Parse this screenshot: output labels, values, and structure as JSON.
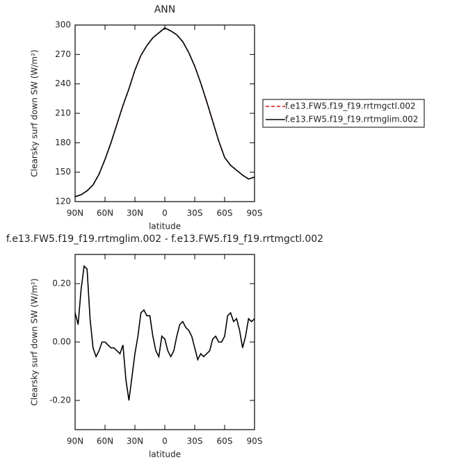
{
  "chart_data": [
    {
      "type": "line",
      "title": "ANN",
      "x_label": "latitude",
      "y_label": "Clearsky surf down SW (W/m²)",
      "x": [
        90,
        84,
        78,
        72,
        66,
        60,
        54,
        48,
        42,
        36,
        30,
        24,
        18,
        12,
        6,
        0,
        -6,
        -12,
        -18,
        -24,
        -30,
        -36,
        -42,
        -48,
        -54,
        -60,
        -66,
        -72,
        -78,
        -84,
        -90
      ],
      "series": [
        {
          "name": "f.e13.FW5.f19_f19.rrtmgctl.002",
          "color": "#dd1111",
          "linestyle": "dashed",
          "values": [
            125,
            127,
            131,
            137,
            148,
            163,
            180,
            199,
            218,
            235,
            254,
            269,
            279,
            287,
            292,
            297,
            294,
            290,
            283,
            272,
            258,
            241,
            222,
            202,
            182,
            165,
            157,
            152,
            147,
            143,
            145
          ]
        },
        {
          "name": "f.e13.FW5.f19_f19.rrtmglim.002",
          "color": "#000000",
          "linestyle": "solid",
          "values": [
            125,
            127,
            131,
            137,
            148,
            163,
            180,
            199,
            218,
            235,
            254,
            269,
            279,
            287,
            292,
            297,
            294,
            290,
            283,
            272,
            258,
            241,
            222,
            202,
            182,
            165,
            157,
            152,
            147,
            143,
            145
          ]
        }
      ],
      "xlim": [
        90,
        -90
      ],
      "xticks": [
        {
          "value": 90,
          "label": "90N"
        },
        {
          "value": 60,
          "label": "60N"
        },
        {
          "value": 30,
          "label": "30N"
        },
        0,
        {
          "value": -30,
          "label": "30S"
        },
        {
          "value": -60,
          "label": "60S"
        },
        {
          "value": -90,
          "label": "90S"
        }
      ],
      "ylim": [
        120,
        300
      ],
      "yticks": [
        120,
        150,
        180,
        210,
        240,
        270,
        300
      ],
      "legend": "right"
    },
    {
      "type": "line",
      "title": "f.e13.FW5.f19_f19.rrtmglim.002 - f.e13.FW5.f19_f19.rrtmgctl.002",
      "x_label": "latitude",
      "y_label": "Clearsky surf down SW (W/m²)",
      "x": [
        90,
        87,
        84,
        81,
        78,
        75,
        72,
        69,
        66,
        63,
        60,
        57,
        54,
        51,
        48,
        45,
        42,
        39,
        36,
        33,
        30,
        27,
        24,
        21,
        18,
        15,
        12,
        9,
        6,
        3,
        0,
        -3,
        -6,
        -9,
        -12,
        -15,
        -18,
        -21,
        -24,
        -27,
        -30,
        -33,
        -36,
        -39,
        -42,
        -45,
        -48,
        -51,
        -54,
        -57,
        -60,
        -63,
        -66,
        -69,
        -72,
        -75,
        -78,
        -81,
        -84,
        -87,
        -90
      ],
      "series": [
        {
          "color": "#000000",
          "linestyle": "solid",
          "values": [
            0.1,
            0.06,
            0.18,
            0.26,
            0.25,
            0.08,
            -0.02,
            -0.05,
            -0.03,
            0.0,
            0.0,
            -0.01,
            -0.02,
            -0.02,
            -0.03,
            -0.04,
            -0.01,
            -0.13,
            -0.2,
            -0.12,
            -0.04,
            0.02,
            0.1,
            0.11,
            0.09,
            0.09,
            0.02,
            -0.03,
            -0.05,
            0.02,
            0.01,
            -0.03,
            -0.05,
            -0.03,
            0.02,
            0.06,
            0.07,
            0.05,
            0.04,
            0.02,
            -0.02,
            -0.06,
            -0.04,
            -0.05,
            -0.04,
            -0.03,
            0.01,
            0.02,
            0.0,
            0.0,
            0.02,
            0.09,
            0.1,
            0.07,
            0.08,
            0.04,
            -0.02,
            0.02,
            0.08,
            0.07,
            0.08
          ]
        }
      ],
      "xlim": [
        90,
        -90
      ],
      "xticks": [
        {
          "value": 90,
          "label": "90N"
        },
        {
          "value": 60,
          "label": "60N"
        },
        {
          "value": 30,
          "label": "30N"
        },
        0,
        {
          "value": -30,
          "label": "30S"
        },
        {
          "value": -60,
          "label": "60S"
        },
        {
          "value": -90,
          "label": "90S"
        }
      ],
      "ylim": [
        -0.3,
        0.3
      ],
      "yticks": [
        {
          "value": -0.2,
          "label": "-0.20"
        },
        {
          "value": 0,
          "label": "0.00"
        },
        {
          "value": 0.2,
          "label": "0.20"
        }
      ]
    }
  ]
}
